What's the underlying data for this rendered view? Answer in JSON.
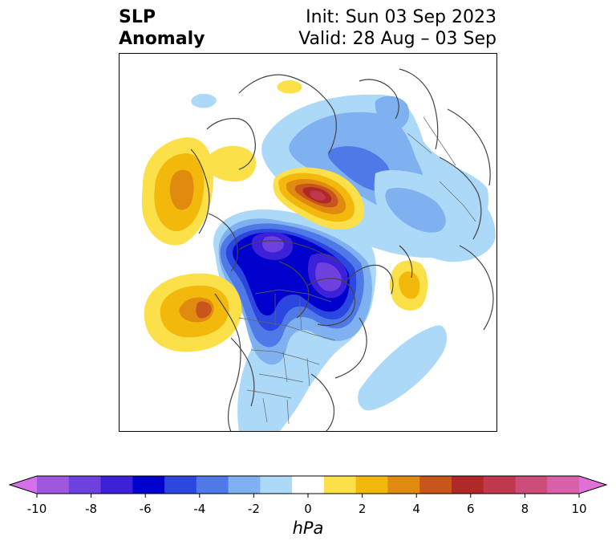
{
  "header": {
    "title_line1": "SLP",
    "title_line2": "Anomaly",
    "init": "Init: Sun 03 Sep 2023",
    "valid": "Valid: 28 Aug – 03 Sep"
  },
  "colorbar": {
    "units": "hPa",
    "min": -10,
    "max": 10,
    "ticks": [
      "-10",
      "-8",
      "-6",
      "-4",
      "-2",
      "0",
      "2",
      "4",
      "6",
      "8",
      "10"
    ],
    "tick_values": [
      -10,
      -8,
      -6,
      -4,
      -2,
      0,
      2,
      4,
      6,
      8,
      10
    ],
    "colors": [
      "#d470e8",
      "#a057e0",
      "#6e40de",
      "#3d21d9",
      "#0000cc",
      "#2b47e0",
      "#5079e8",
      "#7fb1f0",
      "#add9f8",
      "#ffffff",
      "#fbe04a",
      "#f2b90c",
      "#e08a10",
      "#c8561c",
      "#b02828",
      "#c0384e",
      "#cc4c7a",
      "#d860a8",
      "#e070d8"
    ],
    "extend": "both"
  },
  "map": {
    "projection": "polar stereographic, North America",
    "anomaly_features": [
      {
        "label": "negative anomaly over western Canada / Alaska",
        "min_hPa": -8
      },
      {
        "label": "negative anomaly over Hudson Bay",
        "min_hPa": -8
      },
      {
        "label": "positive anomaly over Arctic Ocean",
        "max_hPa": 6
      },
      {
        "label": "positive anomaly over North Pacific (west)",
        "max_hPa": 4
      },
      {
        "label": "positive anomaly over North Pacific (south)",
        "max_hPa": 4
      },
      {
        "label": "positive anomaly over Labrador Sea",
        "max_hPa": 2
      },
      {
        "label": "negative anomaly over Arctic / Siberia",
        "min_hPa": -4
      },
      {
        "label": "weak negative anomaly over Atlantic",
        "min_hPa": -2
      }
    ]
  }
}
